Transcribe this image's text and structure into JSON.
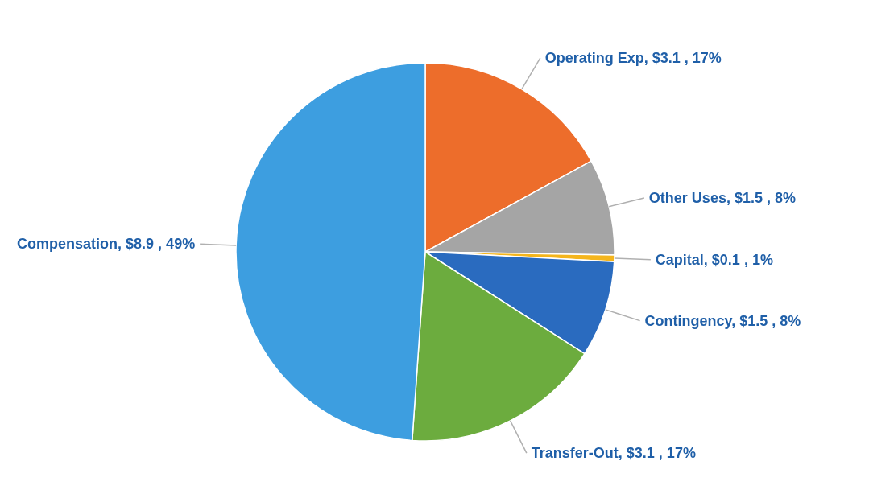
{
  "chart_data": {
    "type": "pie",
    "categories": [
      "Operating Exp",
      "Other Uses",
      "Capital",
      "Contingency",
      "Transfer-Out",
      "Compensation"
    ],
    "values": [
      3.1,
      1.5,
      0.1,
      1.5,
      3.1,
      8.9
    ],
    "colors": [
      "#ed6d2b",
      "#a5a5a5",
      "#f4b51c",
      "#2a6bbf",
      "#6cac3e",
      "#3d9ee0"
    ],
    "value_labels": [
      "$3.1 , 17%",
      "$1.5 , 8%",
      "$0.1 , 1%",
      "$1.5 , 8%",
      "$3.1 , 17%",
      "$8.9 , 49%"
    ],
    "legend": false
  }
}
